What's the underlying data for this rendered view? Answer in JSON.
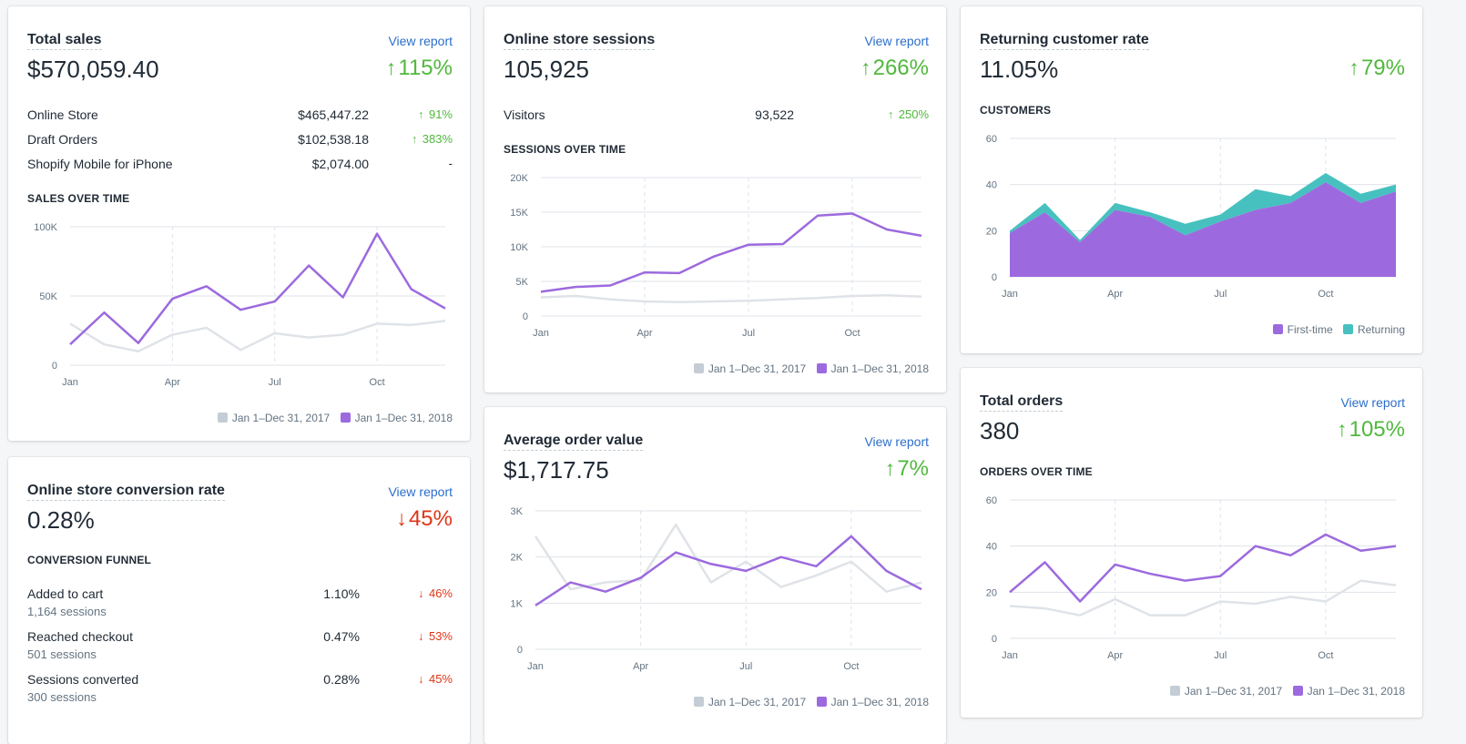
{
  "colors": {
    "y2017": "#c4cdd5",
    "y2018": "#9c6ade",
    "returning": "#47c1bf",
    "up": "#50b83c",
    "down": "#de3618",
    "link": "#2c6ecb"
  },
  "legend": {
    "y2017": "Jan 1–Dec 31, 2017",
    "y2018": "Jan 1–Dec 31, 2018",
    "first_time": "First-time",
    "returning": "Returning"
  },
  "common": {
    "view_report": "View report",
    "arrow_up": "↑",
    "arrow_down": "↓"
  },
  "total_sales": {
    "title": "Total sales",
    "value": "$570,059.40",
    "change": "115%",
    "rows": [
      {
        "label": "Online Store",
        "value": "$465,447.22",
        "change": "91%",
        "dir": "up"
      },
      {
        "label": "Draft Orders",
        "value": "$102,538.18",
        "change": "383%",
        "dir": "up"
      },
      {
        "label": "Shopify Mobile for iPhone",
        "value": "$2,074.00",
        "change": "-",
        "dir": "none"
      }
    ],
    "section": "SALES OVER TIME"
  },
  "sessions": {
    "title": "Online store sessions",
    "value": "105,925",
    "change": "266%",
    "rows": [
      {
        "label": "Visitors",
        "value": "93,522",
        "change": "250%",
        "dir": "up"
      }
    ],
    "section": "SESSIONS OVER TIME"
  },
  "returning": {
    "title": "Returning customer rate",
    "value": "11.05%",
    "change": "79%",
    "section": "CUSTOMERS"
  },
  "conversion": {
    "title": "Online store conversion rate",
    "value": "0.28%",
    "change": "45%",
    "section": "CONVERSION FUNNEL",
    "rows": [
      {
        "label": "Added to cart",
        "sub": "1,164 sessions",
        "value": "1.10%",
        "change": "46%",
        "dir": "down"
      },
      {
        "label": "Reached checkout",
        "sub": "501 sessions",
        "value": "0.47%",
        "change": "53%",
        "dir": "down"
      },
      {
        "label": "Sessions converted",
        "sub": "300 sessions",
        "value": "0.28%",
        "change": "45%",
        "dir": "down"
      }
    ]
  },
  "aov": {
    "title": "Average order value",
    "value": "$1,717.75",
    "change": "7%"
  },
  "orders": {
    "title": "Total orders",
    "value": "380",
    "change": "105%",
    "section": "ORDERS OVER TIME"
  },
  "chart_data": [
    {
      "id": "sales",
      "type": "line",
      "x": [
        "Jan",
        "Feb",
        "Mar",
        "Apr",
        "May",
        "Jun",
        "Jul",
        "Aug",
        "Sep",
        "Oct",
        "Nov",
        "Dec"
      ],
      "xticks": [
        "Jan",
        "Apr",
        "Jul",
        "Oct"
      ],
      "yticks": [
        "0",
        "50K",
        "100K"
      ],
      "ylim": [
        0,
        100000
      ],
      "series": [
        {
          "name": "Jan 1–Dec 31, 2017",
          "values": [
            30000,
            15000,
            10000,
            22000,
            27000,
            11000,
            23000,
            20000,
            22000,
            30000,
            29000,
            32000
          ]
        },
        {
          "name": "Jan 1–Dec 31, 2018",
          "values": [
            15000,
            38000,
            16000,
            48000,
            57000,
            40000,
            46000,
            72000,
            49000,
            95000,
            55000,
            41000
          ]
        }
      ]
    },
    {
      "id": "sessions",
      "type": "line",
      "x": [
        "Jan",
        "Feb",
        "Mar",
        "Apr",
        "May",
        "Jun",
        "Jul",
        "Aug",
        "Sep",
        "Oct",
        "Nov",
        "Dec"
      ],
      "xticks": [
        "Jan",
        "Apr",
        "Jul",
        "Oct"
      ],
      "yticks": [
        "0",
        "5K",
        "10K",
        "15K",
        "20K"
      ],
      "ylim": [
        0,
        20000
      ],
      "series": [
        {
          "name": "Jan 1–Dec 31, 2017",
          "values": [
            2700,
            2900,
            2400,
            2100,
            2000,
            2100,
            2200,
            2400,
            2600,
            2900,
            3000,
            2800
          ]
        },
        {
          "name": "Jan 1–Dec 31, 2018",
          "values": [
            3500,
            4200,
            4400,
            6300,
            6200,
            8600,
            10300,
            10400,
            14500,
            14800,
            12500,
            11600
          ]
        }
      ]
    },
    {
      "id": "customers",
      "type": "area",
      "x": [
        "Jan",
        "Feb",
        "Mar",
        "Apr",
        "May",
        "Jun",
        "Jul",
        "Aug",
        "Sep",
        "Oct",
        "Nov",
        "Dec"
      ],
      "xticks": [
        "Jan",
        "Apr",
        "Jul",
        "Oct"
      ],
      "yticks": [
        "0",
        "20",
        "40",
        "60"
      ],
      "ylim": [
        0,
        60
      ],
      "stacked": true,
      "series": [
        {
          "name": "First-time",
          "values": [
            19,
            28,
            15,
            29,
            26,
            18,
            24,
            29,
            32,
            41,
            32,
            37
          ]
        },
        {
          "name": "Returning",
          "values": [
            1,
            4,
            1,
            3,
            2,
            5,
            3,
            9,
            3,
            4,
            4,
            3
          ]
        }
      ]
    },
    {
      "id": "aov",
      "type": "line",
      "x": [
        "Jan",
        "Feb",
        "Mar",
        "Apr",
        "May",
        "Jun",
        "Jul",
        "Aug",
        "Sep",
        "Oct",
        "Nov",
        "Dec"
      ],
      "xticks": [
        "Jan",
        "Apr",
        "Jul",
        "Oct"
      ],
      "yticks": [
        "0",
        "1K",
        "2K",
        "3K"
      ],
      "ylim": [
        0,
        3000
      ],
      "series": [
        {
          "name": "Jan 1–Dec 31, 2017",
          "values": [
            2450,
            1300,
            1450,
            1500,
            2700,
            1450,
            1900,
            1350,
            1600,
            1900,
            1250,
            1450
          ]
        },
        {
          "name": "Jan 1–Dec 31, 2018",
          "values": [
            950,
            1450,
            1250,
            1550,
            2100,
            1850,
            1700,
            2000,
            1800,
            2450,
            1700,
            1300
          ]
        }
      ]
    },
    {
      "id": "orders",
      "type": "line",
      "x": [
        "Jan",
        "Feb",
        "Mar",
        "Apr",
        "May",
        "Jun",
        "Jul",
        "Aug",
        "Sep",
        "Oct",
        "Nov",
        "Dec"
      ],
      "xticks": [
        "Jan",
        "Apr",
        "Jul",
        "Oct"
      ],
      "yticks": [
        "0",
        "20",
        "40",
        "60"
      ],
      "ylim": [
        0,
        60
      ],
      "series": [
        {
          "name": "Jan 1–Dec 31, 2017",
          "values": [
            14,
            13,
            10,
            17,
            10,
            10,
            16,
            15,
            18,
            16,
            25,
            23
          ]
        },
        {
          "name": "Jan 1–Dec 31, 2018",
          "values": [
            20,
            33,
            16,
            32,
            28,
            25,
            27,
            40,
            36,
            45,
            38,
            40
          ]
        }
      ]
    }
  ]
}
